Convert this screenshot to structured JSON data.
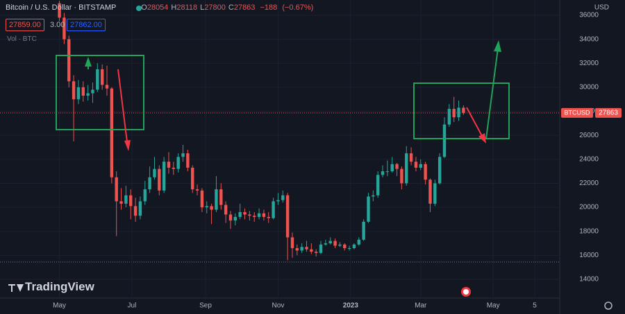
{
  "chart_data": {
    "type": "candlestick",
    "header": {
      "title": "Bitcoin / U.S. Dollar · BITSTAMP",
      "ohlc": [
        {
          "label": "O",
          "value": 28054
        },
        {
          "label": "H",
          "value": 28118
        },
        {
          "label": "L",
          "value": 27800
        },
        {
          "label": "C",
          "value": 27863
        }
      ],
      "change": "−188",
      "change_pct": "(−0.67%)"
    },
    "quote": {
      "bid": "27859.00",
      "spread": "3.00",
      "ask": "27862.00"
    },
    "volume_label": "Vol · BTC",
    "watermark": "TradingView",
    "axis_unit": "USD",
    "last_price": 27863,
    "series": [
      {
        "name": "BTCUSD",
        "up_color": "#26a69a",
        "down_color": "#ef5350",
        "x": [
          0,
          4,
          8,
          12,
          16,
          20,
          24,
          28,
          32,
          36,
          40,
          44,
          48,
          52,
          56,
          60,
          64,
          68,
          72,
          76,
          80,
          84,
          88,
          92,
          96,
          100,
          104,
          108,
          112,
          116,
          120,
          124,
          128,
          132,
          136,
          140,
          144,
          148,
          152,
          156,
          160,
          164,
          168,
          172,
          176,
          180,
          184,
          188,
          192,
          196,
          200,
          204,
          208,
          212,
          216,
          220,
          224,
          228,
          232,
          236,
          240,
          244,
          248,
          252,
          256,
          260,
          264,
          268,
          272,
          276,
          280,
          284,
          288,
          292,
          296,
          300,
          304,
          308,
          312,
          316,
          320,
          324,
          328,
          332,
          336,
          340
        ],
        "open": [
          37000,
          35800,
          34000,
          30500,
          29000,
          30000,
          29300,
          29500,
          29800,
          31500,
          30200,
          29900,
          22500,
          20500,
          20300,
          21000,
          20100,
          19300,
          20500,
          21500,
          22500,
          23200,
          21400,
          23800,
          23300,
          23200,
          24200,
          24500,
          23300,
          21500,
          21400,
          20000,
          20100,
          19800,
          21500,
          20200,
          19400,
          18900,
          19200,
          19600,
          19400,
          19300,
          19200,
          19500,
          19200,
          19100,
          20500,
          20600,
          21000,
          17500,
          16600,
          16400,
          16700,
          16500,
          16300,
          16200,
          16900,
          17000,
          17200,
          16800,
          16900,
          16600,
          16600,
          16900,
          17300,
          18800,
          20900,
          21000,
          22700,
          23000,
          23000,
          23600,
          23200,
          22000,
          24500,
          23800,
          23300,
          23600,
          22300,
          20300,
          22000,
          24200,
          26900,
          28200,
          27500,
          28300
        ],
        "high": [
          37200,
          36200,
          34300,
          31000,
          30600,
          30500,
          30200,
          30400,
          32000,
          31900,
          31800,
          30000,
          23000,
          21600,
          21800,
          21500,
          20800,
          20900,
          22200,
          23400,
          24200,
          23500,
          24200,
          24600,
          23800,
          24500,
          25200,
          24800,
          23500,
          21900,
          21600,
          20500,
          20300,
          22600,
          22000,
          20500,
          19700,
          19500,
          20300,
          19900,
          19700,
          19600,
          19900,
          19800,
          19600,
          20800,
          21200,
          21400,
          21200,
          17900,
          16900,
          17000,
          17200,
          17000,
          16500,
          17200,
          17300,
          17500,
          17400,
          17100,
          17000,
          16800,
          17000,
          17500,
          19000,
          21200,
          21400,
          23000,
          23500,
          23900,
          24200,
          23700,
          23400,
          25100,
          25000,
          24200,
          24000,
          23800,
          22400,
          22300,
          24500,
          27500,
          28600,
          29200,
          28900,
          28500
        ],
        "low": [
          35500,
          33600,
          30000,
          25500,
          28600,
          28800,
          28900,
          28700,
          29600,
          29800,
          29300,
          22000,
          17600,
          19800,
          20000,
          19000,
          18800,
          19000,
          20200,
          21200,
          22300,
          21000,
          21200,
          22800,
          22700,
          22900,
          23800,
          23000,
          21200,
          21000,
          19600,
          19500,
          18600,
          19600,
          19800,
          18700,
          18200,
          18500,
          19000,
          19000,
          18900,
          18800,
          19000,
          18900,
          18700,
          19000,
          20200,
          20400,
          15600,
          15800,
          16000,
          16200,
          16300,
          16100,
          15900,
          16100,
          16800,
          16900,
          16600,
          16700,
          16400,
          16400,
          16500,
          16800,
          17200,
          18700,
          20500,
          20800,
          22500,
          22600,
          22900,
          22600,
          21500,
          21800,
          23500,
          23000,
          23100,
          21900,
          19600,
          20100,
          21900,
          24100,
          26700,
          27100,
          27200,
          27700
        ],
        "close": [
          35800,
          34000,
          30500,
          29000,
          30000,
          29300,
          29500,
          29800,
          31500,
          30200,
          29900,
          22500,
          20500,
          20300,
          21000,
          20100,
          19300,
          20500,
          21500,
          22500,
          23200,
          21400,
          23800,
          23300,
          23200,
          24200,
          24500,
          23300,
          21500,
          21400,
          20000,
          20100,
          19800,
          21500,
          20200,
          19400,
          18900,
          19200,
          19600,
          19400,
          19300,
          19200,
          19500,
          19200,
          19100,
          20500,
          20600,
          21000,
          17500,
          16600,
          16400,
          16700,
          16500,
          16300,
          16200,
          16900,
          17000,
          17200,
          16800,
          16900,
          16600,
          16600,
          16900,
          17300,
          18800,
          20900,
          21000,
          22700,
          23000,
          23000,
          23600,
          23200,
          22000,
          24500,
          23800,
          23300,
          23600,
          22300,
          20300,
          22000,
          24200,
          26900,
          28200,
          27500,
          28300,
          27863
        ]
      }
    ],
    "xlim": [
      -50,
      421
    ],
    "xticks": [
      {
        "value": 0,
        "label": "May"
      },
      {
        "value": 61,
        "label": "Jul"
      },
      {
        "value": 123,
        "label": "Sep"
      },
      {
        "value": 184,
        "label": "Nov"
      },
      {
        "value": 245,
        "label": "2023"
      },
      {
        "value": 304,
        "label": "Mar"
      },
      {
        "value": 365,
        "label": "May"
      },
      {
        "value": 400,
        "label": "5"
      }
    ],
    "ylim": [
      12440,
      37270
    ],
    "yticks": [
      14000,
      16000,
      18000,
      20000,
      22000,
      24000,
      26000,
      28000,
      30000,
      32000,
      34000,
      36000
    ],
    "grid": true
  }
}
